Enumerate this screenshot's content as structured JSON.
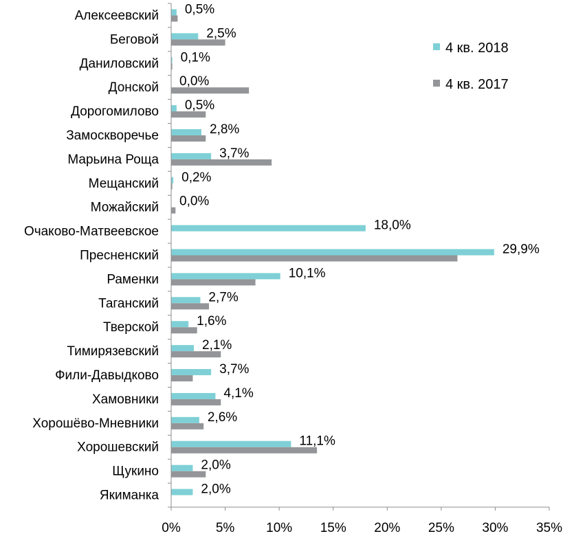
{
  "chart_data": {
    "type": "bar",
    "orientation": "horizontal",
    "categories": [
      "Алексеевский",
      "Беговой",
      "Даниловский",
      "Донской",
      "Дорогомилово",
      "Замоскворечье",
      "Марьина Роща",
      "Мещанский",
      "Можайский",
      "Очаково-Матвеевское",
      "Пресненский",
      "Раменки",
      "Таганский",
      "Тверской",
      "Тимирязевский",
      "Фили-Давыдково",
      "Хамовники",
      "Хорошёво-Мневники",
      "Хорошевский",
      "Щукино",
      "Якиманка"
    ],
    "series": [
      {
        "name": "4 кв. 2018",
        "color": "#7FD0D6",
        "values": [
          0.5,
          2.5,
          0.1,
          0.0,
          0.5,
          2.8,
          3.7,
          0.2,
          0.0,
          18.0,
          29.9,
          10.1,
          2.7,
          1.6,
          2.1,
          3.7,
          4.1,
          2.6,
          11.1,
          2.0,
          2.0
        ],
        "labels": [
          "0,5%",
          "2,5%",
          "0,1%",
          "0,0%",
          "0,5%",
          "2,8%",
          "3,7%",
          "0,2%",
          "0,0%",
          "18,0%",
          "29,9%",
          "10,1%",
          "2,7%",
          "1,6%",
          "2,1%",
          "3,7%",
          "4,1%",
          "2,6%",
          "11,1%",
          "2,0%",
          "2,0%"
        ]
      },
      {
        "name": "4 кв. 2017",
        "color": "#939598",
        "values": [
          0.6,
          5.0,
          0.1,
          7.2,
          3.2,
          3.2,
          9.3,
          0.1,
          0.4,
          0.0,
          26.5,
          7.8,
          3.5,
          2.4,
          4.6,
          2.0,
          4.6,
          3.0,
          13.5,
          3.2,
          0.0
        ]
      }
    ],
    "xlim": [
      0,
      35
    ],
    "xticks": [
      "0%",
      "5%",
      "10%",
      "15%",
      "20%",
      "25%",
      "30%",
      "35%"
    ],
    "legend_position": "top-right",
    "grid": false
  }
}
